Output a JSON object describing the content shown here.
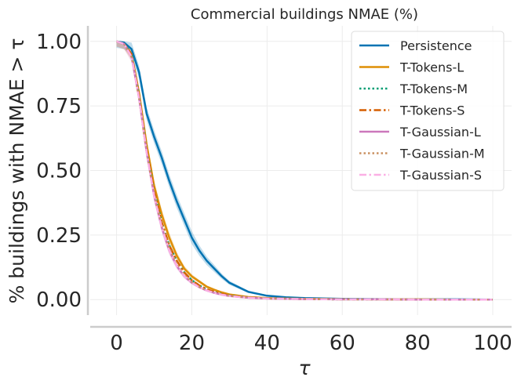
{
  "chart_data": {
    "type": "line",
    "title": "Commercial buildings NMAE (%)",
    "xlabel": "τ",
    "ylabel": "% buildings with NMAE  > τ",
    "xlim": [
      -7,
      105
    ],
    "ylim": [
      -0.06,
      1.06
    ],
    "xticks": [
      0,
      20,
      40,
      60,
      80,
      100
    ],
    "xtick_labels": [
      "0",
      "20",
      "40",
      "60",
      "80",
      "100"
    ],
    "yticks": [
      0.0,
      0.25,
      0.5,
      0.75,
      1.0
    ],
    "ytick_labels": [
      "0.00",
      "0.25",
      "0.50",
      "0.75",
      "1.00"
    ],
    "grid": true,
    "legend_position": "top-right",
    "x": [
      0,
      2,
      4,
      6,
      8,
      10,
      12,
      14,
      16,
      18,
      20,
      22,
      24,
      26,
      28,
      30,
      35,
      40,
      45,
      50,
      60,
      70,
      80,
      90,
      100
    ],
    "series": [
      {
        "name": "Persistence",
        "color": "#0173b2",
        "dash": "solid",
        "band": 0.025,
        "values": [
          1.0,
          0.995,
          0.97,
          0.88,
          0.72,
          0.63,
          0.55,
          0.46,
          0.38,
          0.31,
          0.24,
          0.19,
          0.15,
          0.12,
          0.09,
          0.065,
          0.03,
          0.015,
          0.009,
          0.006,
          0.003,
          0.002,
          0.001,
          0.001,
          0.0
        ]
      },
      {
        "name": "T-Tokens-L",
        "color": "#de8f05",
        "dash": "solid",
        "band": 0.02,
        "values": [
          1.0,
          0.99,
          0.95,
          0.8,
          0.6,
          0.44,
          0.33,
          0.24,
          0.17,
          0.12,
          0.09,
          0.07,
          0.05,
          0.038,
          0.028,
          0.02,
          0.01,
          0.006,
          0.004,
          0.003,
          0.002,
          0.001,
          0.001,
          0.0,
          0.0
        ]
      },
      {
        "name": "T-Tokens-M",
        "color": "#029e73",
        "dash": "dotted",
        "band": 0,
        "values": [
          1.0,
          0.99,
          0.95,
          0.79,
          0.58,
          0.42,
          0.3,
          0.21,
          0.15,
          0.105,
          0.075,
          0.055,
          0.04,
          0.03,
          0.022,
          0.016,
          0.008,
          0.005,
          0.003,
          0.002,
          0.001,
          0.001,
          0.0,
          0.0,
          0.0
        ]
      },
      {
        "name": "T-Tokens-S",
        "color": "#d55e00",
        "dash": "dashdot",
        "band": 0,
        "values": [
          1.0,
          0.99,
          0.95,
          0.79,
          0.58,
          0.42,
          0.3,
          0.21,
          0.15,
          0.105,
          0.075,
          0.055,
          0.04,
          0.03,
          0.022,
          0.016,
          0.008,
          0.005,
          0.003,
          0.002,
          0.001,
          0.001,
          0.0,
          0.0,
          0.0
        ]
      },
      {
        "name": "T-Gaussian-L",
        "color": "#cc78bc",
        "dash": "solid",
        "band": 0.02,
        "values": [
          1.0,
          0.99,
          0.94,
          0.78,
          0.57,
          0.4,
          0.28,
          0.19,
          0.13,
          0.09,
          0.065,
          0.048,
          0.035,
          0.026,
          0.019,
          0.014,
          0.007,
          0.004,
          0.003,
          0.002,
          0.001,
          0.001,
          0.0,
          0.0,
          0.0
        ]
      },
      {
        "name": "T-Gaussian-M",
        "color": "#ca9161",
        "dash": "dotted",
        "band": 0,
        "values": [
          1.0,
          0.99,
          0.94,
          0.78,
          0.57,
          0.41,
          0.29,
          0.2,
          0.14,
          0.095,
          0.068,
          0.05,
          0.036,
          0.027,
          0.02,
          0.015,
          0.007,
          0.004,
          0.003,
          0.002,
          0.001,
          0.001,
          0.0,
          0.0,
          0.0
        ]
      },
      {
        "name": "T-Gaussian-S",
        "color": "#fbafe4",
        "dash": "dashdot",
        "band": 0,
        "values": [
          1.0,
          0.99,
          0.94,
          0.78,
          0.57,
          0.4,
          0.28,
          0.19,
          0.13,
          0.09,
          0.065,
          0.048,
          0.035,
          0.026,
          0.019,
          0.014,
          0.007,
          0.004,
          0.003,
          0.002,
          0.001,
          0.001,
          0.0,
          0.0,
          0.0
        ]
      }
    ]
  }
}
